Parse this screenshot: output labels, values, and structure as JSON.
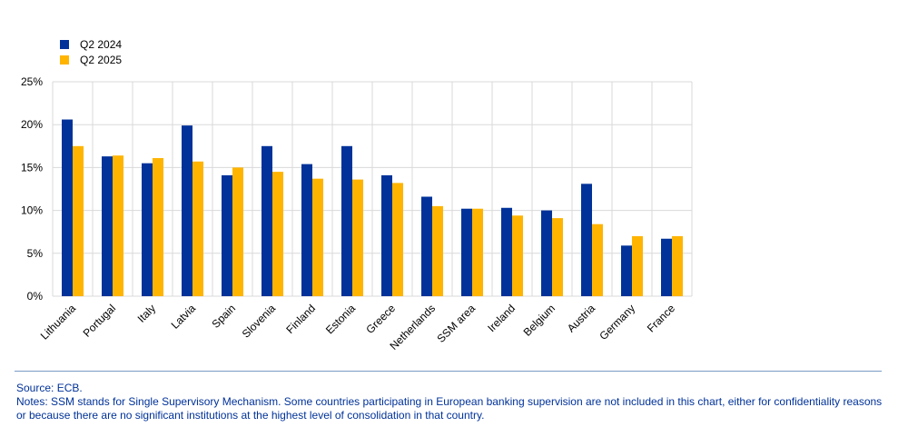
{
  "chart_data": {
    "type": "bar",
    "categories": [
      "Lithuania",
      "Portugal",
      "Italy",
      "Latvia",
      "Spain",
      "Slovenia",
      "Finland",
      "Estonia",
      "Greece",
      "Netherlands",
      "SSM area",
      "Ireland",
      "Belgium",
      "Austria",
      "Germany",
      "France"
    ],
    "series": [
      {
        "name": "Q2 2024",
        "color": "#003299",
        "values": [
          20.6,
          16.3,
          15.5,
          19.9,
          14.1,
          17.5,
          15.4,
          17.5,
          14.1,
          11.6,
          10.2,
          10.3,
          10.0,
          13.1,
          5.9,
          6.7
        ]
      },
      {
        "name": "Q2 2025",
        "color": "#FFB400",
        "values": [
          17.5,
          16.4,
          16.1,
          15.7,
          15.0,
          14.5,
          13.7,
          13.6,
          13.2,
          10.5,
          10.2,
          9.4,
          9.1,
          8.4,
          7.0,
          7.0
        ]
      }
    ],
    "y_ticks": [
      "0%",
      "5%",
      "10%",
      "15%",
      "20%",
      "25%"
    ],
    "ylim": [
      0,
      25
    ],
    "grid": true,
    "legend_position": "top-left"
  },
  "footer": {
    "source": "Source: ECB.",
    "notes": "Notes: SSM stands for Single Supervisory Mechanism. Some countries participating in European banking supervision are not included in this chart, either for confidentiality reasons or because there are no significant institutions at the highest level of consolidation in that country."
  }
}
